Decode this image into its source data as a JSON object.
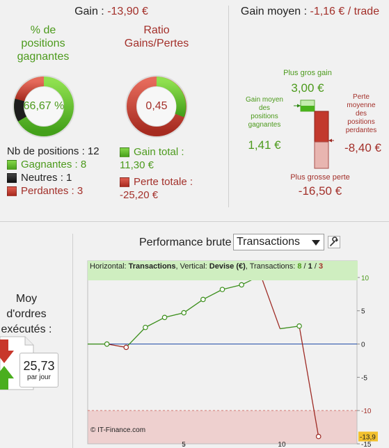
{
  "gain": {
    "label": "Gain : ",
    "value": "-13,90 €"
  },
  "gain_moyen": {
    "label": "Gain moyen : ",
    "value": "-1,16 € / trade"
  },
  "pct_positions": {
    "title_lines": [
      "% de",
      "positions",
      "gagnantes"
    ],
    "value": "66,67 %",
    "fraction": 0.6667
  },
  "ratio": {
    "title_lines": [
      "Ratio",
      "Gains/Pertes"
    ],
    "value": "0,45",
    "fraction": 0.3105
  },
  "nb_positions": {
    "label": "Nb de positions : 12",
    "gagnantes": "Gagnantes : 8",
    "neutres": "Neutres : 1",
    "perdantes": "Perdantes : 3"
  },
  "gain_total": {
    "label": "Gain total :",
    "value": "11,30 €"
  },
  "perte_totale": {
    "label": "Perte totale :",
    "value": "-25,20 €"
  },
  "right_panel": {
    "plus_gros_gain_label": "Plus gros gain",
    "plus_gros_gain_value": "3,00 €",
    "gain_moyen_lines": [
      "Gain moyen",
      "des",
      "positions",
      "gagnantes"
    ],
    "gain_moyen_value": "1,41 €",
    "perte_moyenne_lines": [
      "Perte",
      "moyenne",
      "des",
      "positions",
      "perdantes"
    ],
    "perte_moyenne_value": "-8,40 €",
    "plus_grosse_perte_label": "Plus grosse perte",
    "plus_grosse_perte_value": "-16,50 €"
  },
  "performance": {
    "label": "Performance brute",
    "select_value": "Transactions",
    "header_prefix": "Horizontal: ",
    "header_h": "Transactions",
    "header_mid": ", Vertical: ",
    "header_v": "Devise (€)",
    "header_tx": ", Transactions: ",
    "tx_win": "8",
    "tx_sep1": " / ",
    "tx_neutral": "1",
    "tx_sep2": " / ",
    "tx_lose": "3",
    "copyright": "© IT-Finance.com"
  },
  "moy_ordres": {
    "lines": [
      "Moy",
      "d'ordres",
      "exécutés :"
    ],
    "value": "25,73",
    "unit": "par jour"
  },
  "chart_data": {
    "type": "line",
    "x": [
      1,
      2,
      3,
      4,
      5,
      6,
      7,
      8,
      9,
      10,
      11,
      12
    ],
    "values": [
      0,
      -0.5,
      2.5,
      4,
      4.7,
      6.7,
      8.2,
      8.9,
      10.3,
      2.3,
      2.7,
      -13.9
    ],
    "xlim": [
      0,
      14
    ],
    "ylim": [
      -15,
      12.5
    ],
    "x_ticks": [
      "5",
      "10"
    ],
    "y_ticks": [
      "10",
      "5",
      "0",
      "-5",
      "-10",
      "-15"
    ],
    "last_value_label": "-13,9",
    "colors": {
      "gain": "#3c8f1c",
      "loss": "#9e2b25",
      "zero": "#1f4aa6"
    }
  }
}
